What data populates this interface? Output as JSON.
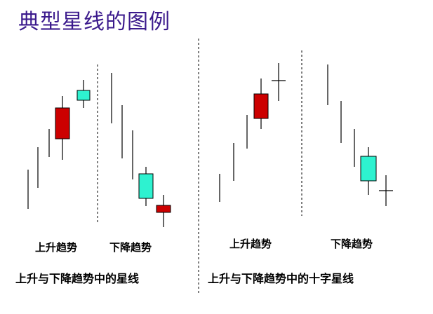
{
  "title": "典型星线的图例",
  "labels": {
    "left_up": "上升趋势",
    "left_down": "下降趋势",
    "right_up": "上升趋势",
    "right_down": "下降趋势"
  },
  "captions": {
    "left": "上升与下降趋势中的星线",
    "right": "上升与下降趋势中的十字星线"
  },
  "colors": {
    "bearish_body": "#cc0000",
    "bullish_body": "#2ef2d0",
    "line": "#000000",
    "title": "#3b1a8c"
  }
}
